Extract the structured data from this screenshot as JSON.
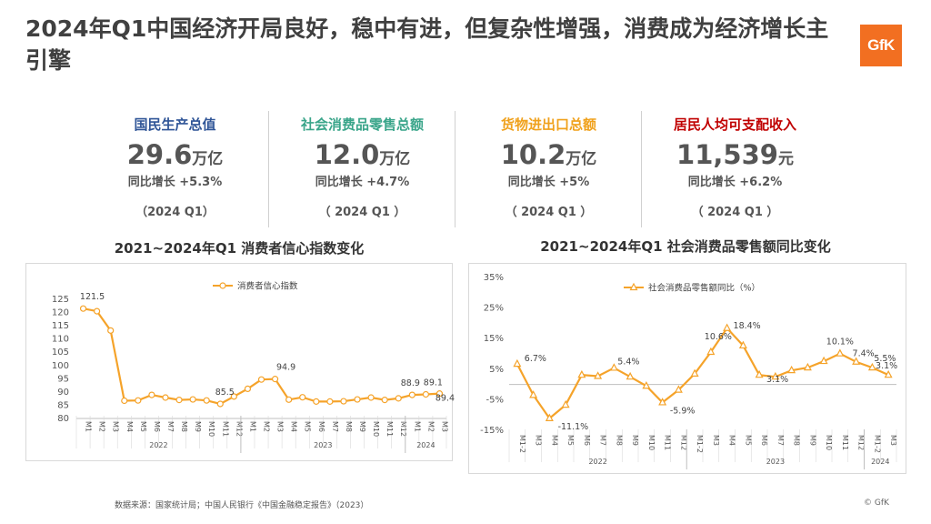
{
  "title": "2024年Q1中国经济开局良好，稳中有进，但复杂性增强，消费成为经济增长主引擎",
  "logo": "GfK",
  "kpis": [
    {
      "name": "国民生产总值",
      "number": "29.6",
      "unit": "万亿",
      "growth": "同比增长 +5.3%",
      "period": "（2024 Q1）",
      "color": "#2f5597"
    },
    {
      "name": "社会消费品零售总额",
      "number": "12.0",
      "unit": "万亿",
      "growth": "同比增长 +4.7%",
      "period": "（ 2024 Q1 ）",
      "color": "#3aa58a"
    },
    {
      "name": "货物进出口总额",
      "number": "10.2",
      "unit": "万亿",
      "growth": "同比增长 +5%",
      "period": "（ 2024 Q1 ）",
      "color": "#f0a11c"
    },
    {
      "name": "居民人均可支配收入",
      "number": "11,539",
      "unit": "元",
      "growth": "同比增长 +6.2%",
      "period": "（ 2024 Q1 ）",
      "color": "#c00000"
    }
  ],
  "colors": {
    "series": "#f5a32a",
    "axis": "#bfbfbf",
    "grid": "#d9d9d9"
  },
  "chart_data": [
    {
      "type": "line",
      "title": "2021~2024年Q1 消费者信心指数变化",
      "legend": "消费者信心指数",
      "legend_position": "top-center",
      "marker": "circle",
      "categories": [
        "M1",
        "M2",
        "M3",
        "M4",
        "M5",
        "M6",
        "M7",
        "M8",
        "M9",
        "M10",
        "M11",
        "M12",
        "M1",
        "M2",
        "M3",
        "M4",
        "M5",
        "M6",
        "M7",
        "M8",
        "M9",
        "M10",
        "M11",
        "M12",
        "M1",
        "M2",
        "M3"
      ],
      "groups": [
        {
          "label": "2022",
          "span": 12
        },
        {
          "label": "2023",
          "span": 12
        },
        {
          "label": "2024",
          "span": 3
        }
      ],
      "values": [
        121.5,
        120.5,
        113.2,
        86.7,
        86.8,
        88.9,
        87.9,
        87.0,
        87.2,
        86.8,
        85.5,
        88.3,
        91.2,
        94.7,
        94.9,
        87.1,
        88.0,
        86.4,
        86.4,
        86.5,
        87.2,
        87.9,
        87.0,
        87.6,
        88.9,
        89.1,
        89.4
      ],
      "labels": [
        {
          "index": 0,
          "text": "121.5"
        },
        {
          "index": 10,
          "text": "85.5"
        },
        {
          "index": 14,
          "text": "94.9"
        },
        {
          "index": 24,
          "text": "88.9"
        },
        {
          "index": 25,
          "text": "89.1"
        },
        {
          "index": 26,
          "text": "89.4"
        }
      ],
      "yticks": [
        "80",
        "85",
        "90",
        "95",
        "100",
        "105",
        "110",
        "115",
        "120",
        "125"
      ],
      "ylim": [
        80,
        125
      ]
    },
    {
      "type": "line",
      "title": "2021~2024年Q1 社会消费品零售额同比变化",
      "legend": "社会消费品零售额同比（%）",
      "legend_position": "top-center",
      "marker": "triangle",
      "categories": [
        "M1-2",
        "M3",
        "M4",
        "M5",
        "M6",
        "M7",
        "M8",
        "M9",
        "M10",
        "M11",
        "M12",
        "M1-2",
        "M3",
        "M4",
        "M5",
        "M6",
        "M7",
        "M8",
        "M9",
        "M10",
        "M11",
        "M12",
        "M1-2",
        "M3"
      ],
      "groups": [
        {
          "label": "2022",
          "span": 11
        },
        {
          "label": "2023",
          "span": 11
        },
        {
          "label": "2024",
          "span": 2
        }
      ],
      "values": [
        6.7,
        -3.5,
        -11.1,
        -6.7,
        3.1,
        2.7,
        5.4,
        2.5,
        -0.5,
        -5.9,
        -1.8,
        3.5,
        10.6,
        18.4,
        12.7,
        3.1,
        2.5,
        4.6,
        5.5,
        7.6,
        10.1,
        7.4,
        5.5,
        3.1
      ],
      "labels": [
        {
          "index": 0,
          "text": "6.7%"
        },
        {
          "index": 2,
          "text": "-11.1%"
        },
        {
          "index": 6,
          "text": "5.4%"
        },
        {
          "index": 9,
          "text": "-5.9%"
        },
        {
          "index": 12,
          "text": "10.6%"
        },
        {
          "index": 13,
          "text": "18.4%"
        },
        {
          "index": 15,
          "text": "3.1%"
        },
        {
          "index": 20,
          "text": "10.1%"
        },
        {
          "index": 21,
          "text": "7.4%"
        },
        {
          "index": 22,
          "text": "5.5%"
        },
        {
          "index": 23,
          "text": "3.1%"
        }
      ],
      "yticks": [
        "-15%",
        "-5%",
        "5%",
        "15%",
        "25%",
        "35%"
      ],
      "ylim": [
        -15,
        35
      ]
    }
  ],
  "footer": "数据来源：国家统计局；中国人民银行《中国金融稳定报告》（2023）",
  "copyright": "© GfK"
}
